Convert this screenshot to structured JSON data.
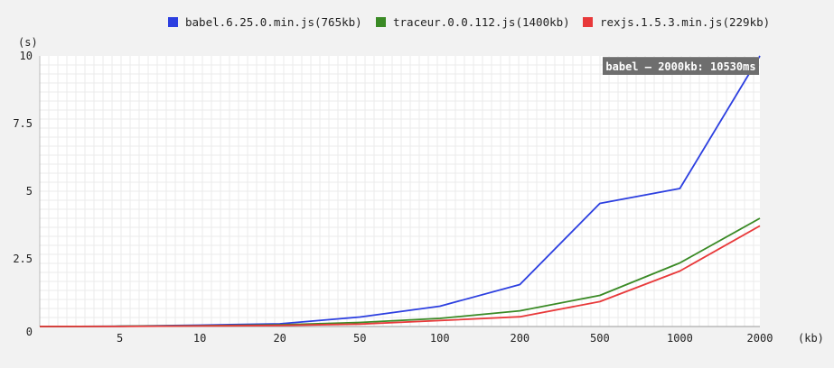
{
  "legend": {
    "items": [
      {
        "label": "babel.6.25.0.min.js(765kb)",
        "color": "#2c3fe0"
      },
      {
        "label": "traceur.0.0.112.js(1400kb)",
        "color": "#3a8a25"
      },
      {
        "label": "rexjs.1.5.3.min.js(229kb)",
        "color": "#e8393a"
      }
    ]
  },
  "tooltip": {
    "text": "babel — 2000kb: 10530ms"
  },
  "axes": {
    "y_unit": "(s)",
    "x_unit": "(kb)"
  },
  "chart_data": {
    "type": "line",
    "categories": [
      "0",
      "5",
      "10",
      "20",
      "50",
      "100",
      "200",
      "500",
      "1000",
      "2000"
    ],
    "y_ticks": [
      "0",
      "2.5",
      "5",
      "7.5",
      "10"
    ],
    "ylim": [
      0,
      10
    ],
    "ylabel": "(s)",
    "xlabel": "(kb)",
    "grid": true,
    "legend_position": "top",
    "series": [
      {
        "name": "babel.6.25.0.min.js(765kb)",
        "color": "#2c3fe0",
        "values": [
          0,
          0.01,
          0.05,
          0.1,
          0.35,
          0.75,
          1.55,
          4.55,
          5.1,
          10.53
        ]
      },
      {
        "name": "traceur.0.0.112.js(1400kb)",
        "color": "#3a8a25",
        "values": [
          0,
          0.01,
          0.03,
          0.06,
          0.15,
          0.3,
          0.58,
          1.15,
          2.35,
          4.0
        ]
      },
      {
        "name": "rexjs.1.5.3.min.js(229kb)",
        "color": "#e8393a",
        "values": [
          0,
          0.005,
          0.02,
          0.04,
          0.09,
          0.22,
          0.36,
          0.92,
          2.05,
          3.72
        ]
      }
    ]
  }
}
